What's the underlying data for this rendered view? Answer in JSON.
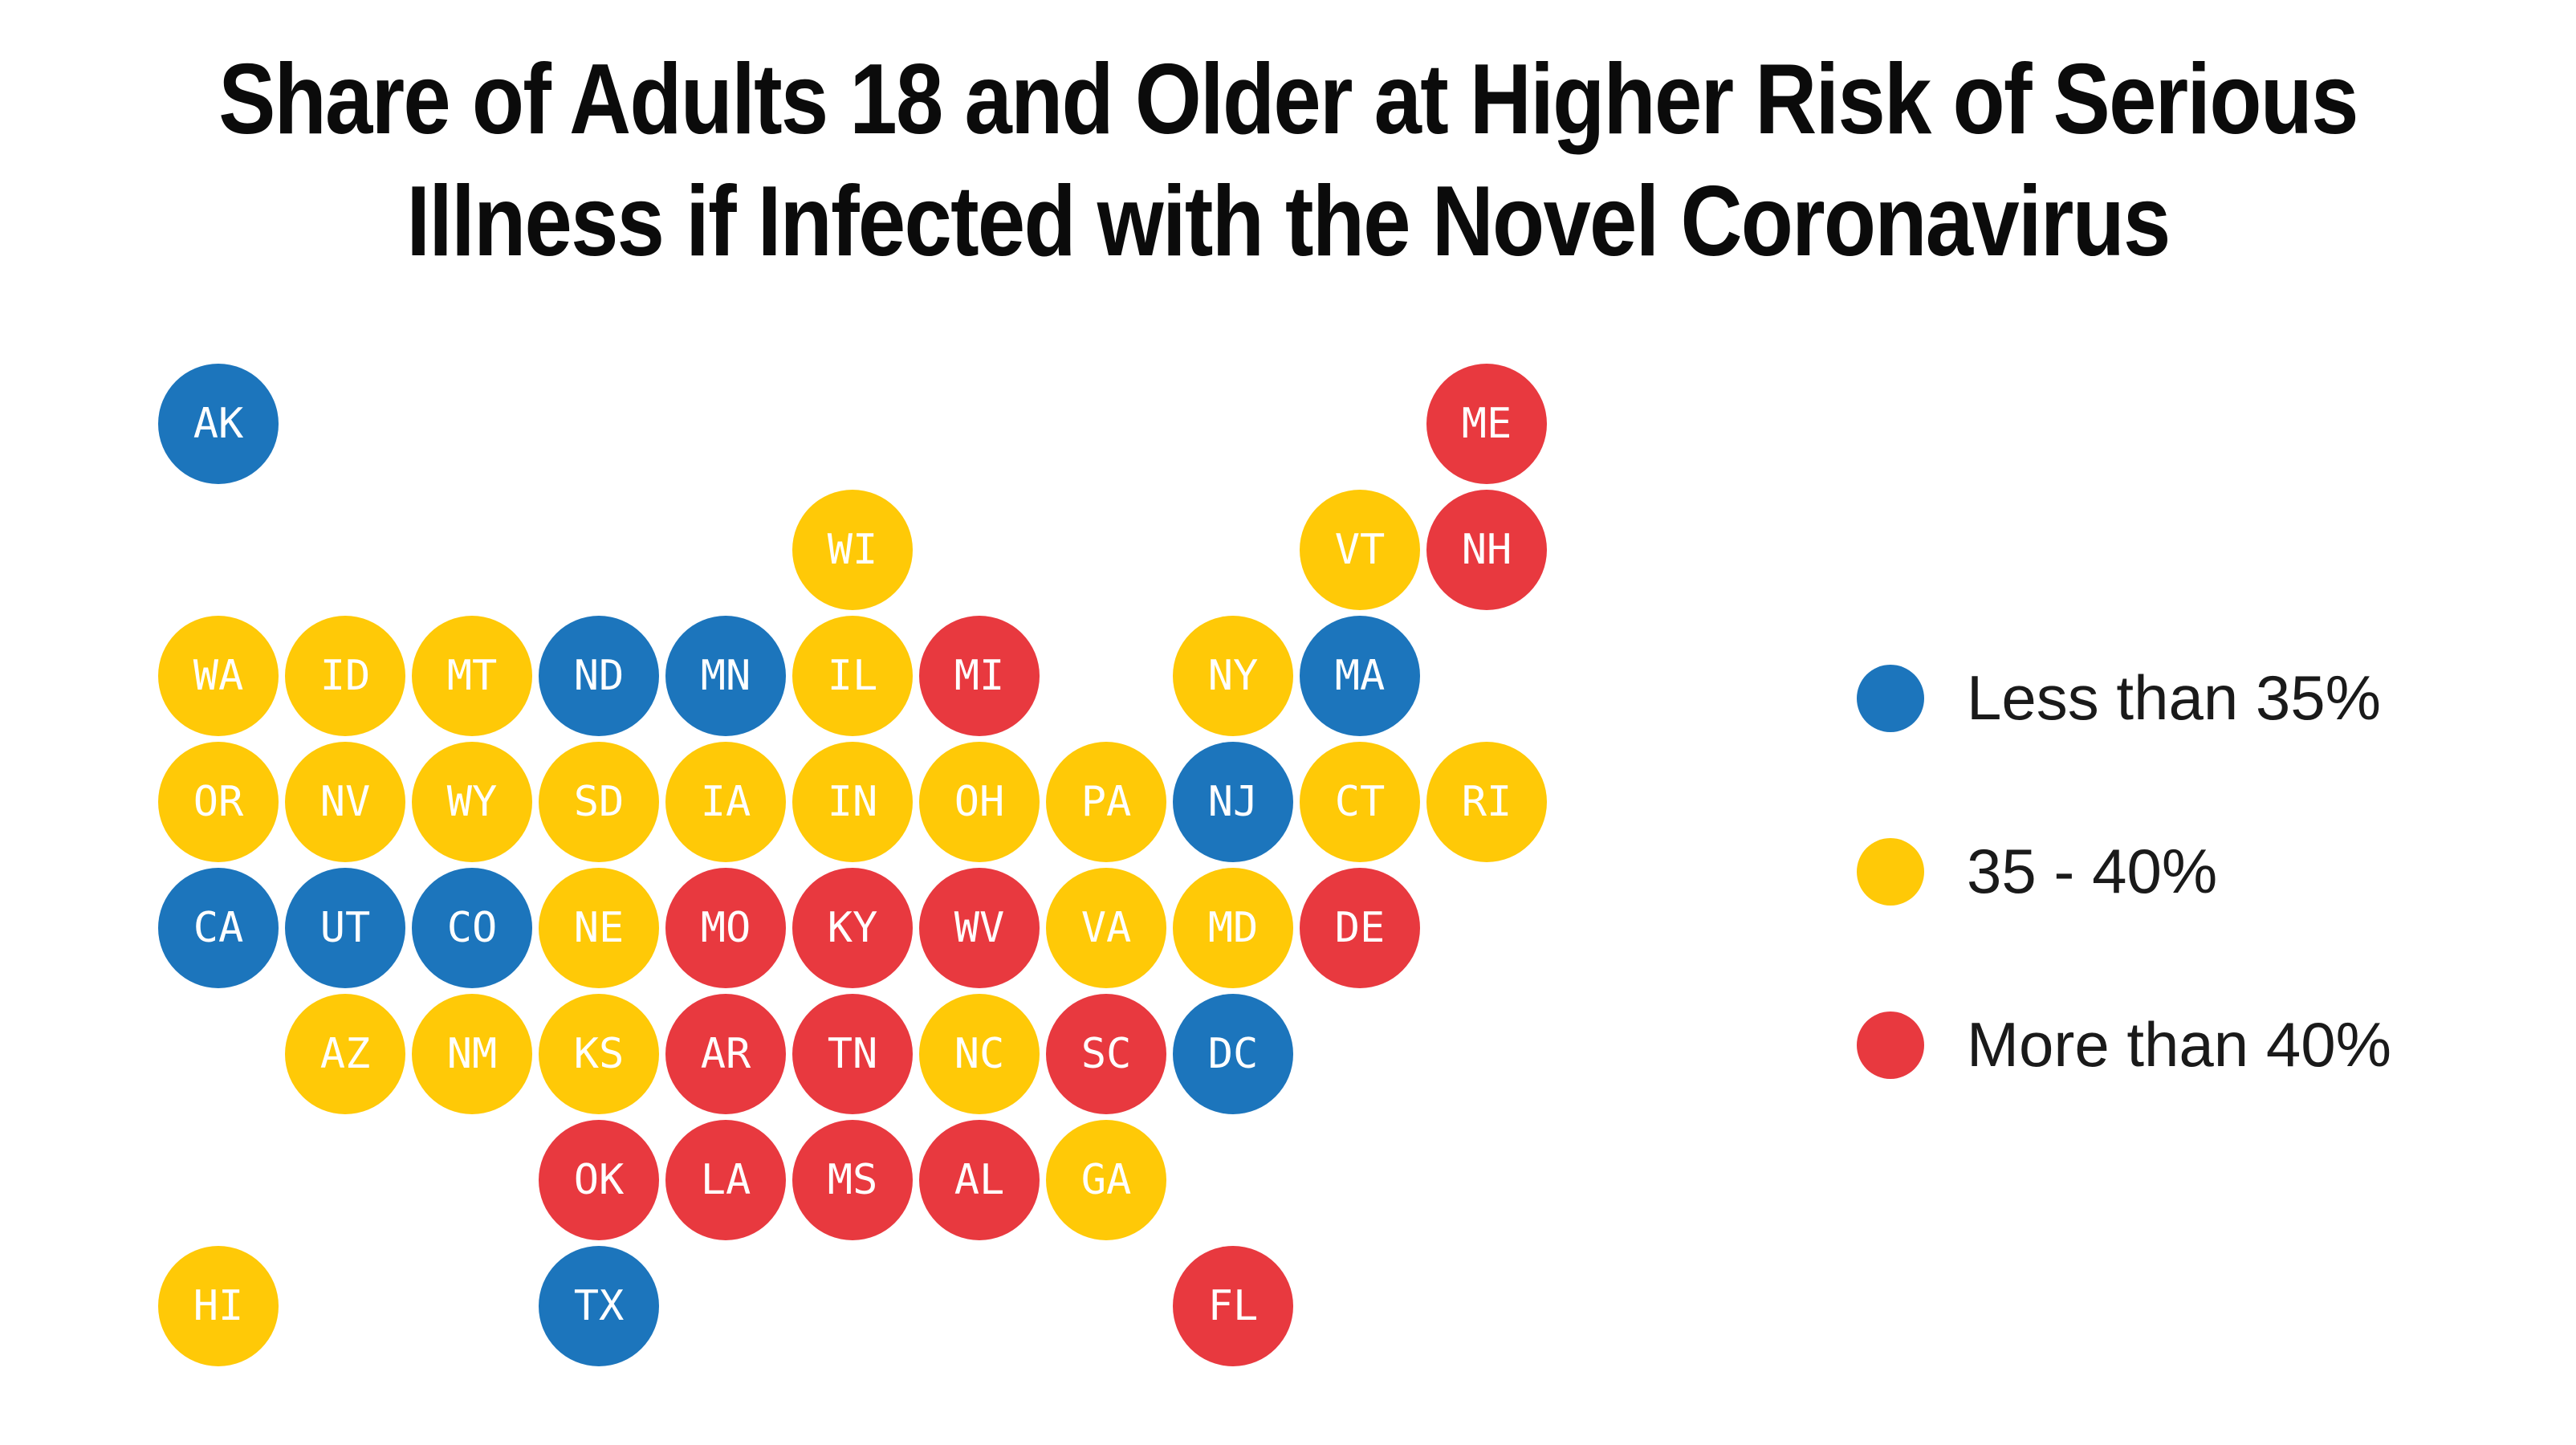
{
  "title": {
    "line1": "Share of Adults 18 and Older at Higher Risk of Serious",
    "line2": "Illness if Infected with the Novel Coronavirus"
  },
  "palette": {
    "blue": "#1C75BC",
    "yellow": "#FFC907",
    "red": "#E8393F"
  },
  "legend": [
    {
      "label": "Less than 35%",
      "color": "blue"
    },
    {
      "label": "35 - 40%",
      "color": "yellow"
    },
    {
      "label": "More than 40%",
      "color": "red"
    }
  ],
  "chart_data": {
    "type": "tile-grid-map",
    "title": "Share of Adults 18 and Older at Higher Risk of Serious Illness if Infected with the Novel Coronavirus",
    "categories": [
      "Less than 35%",
      "35 - 40%",
      "More than 40%"
    ],
    "category_colors": {
      "Less than 35%": "blue",
      "35 - 40%": "yellow",
      "More than 40%": "red"
    },
    "legend_position": "right",
    "states": [
      {
        "abbr": "AK",
        "row": 0,
        "col": 0,
        "color": "blue",
        "category": "Less than 35%"
      },
      {
        "abbr": "ME",
        "row": 0,
        "col": 10,
        "color": "red",
        "category": "More than 40%"
      },
      {
        "abbr": "WI",
        "row": 1,
        "col": 5,
        "color": "yellow",
        "category": "35 - 40%"
      },
      {
        "abbr": "VT",
        "row": 1,
        "col": 9,
        "color": "yellow",
        "category": "35 - 40%"
      },
      {
        "abbr": "NH",
        "row": 1,
        "col": 10,
        "color": "red",
        "category": "More than 40%"
      },
      {
        "abbr": "WA",
        "row": 2,
        "col": 0,
        "color": "yellow",
        "category": "35 - 40%"
      },
      {
        "abbr": "ID",
        "row": 2,
        "col": 1,
        "color": "yellow",
        "category": "35 - 40%"
      },
      {
        "abbr": "MT",
        "row": 2,
        "col": 2,
        "color": "yellow",
        "category": "35 - 40%"
      },
      {
        "abbr": "ND",
        "row": 2,
        "col": 3,
        "color": "blue",
        "category": "Less than 35%"
      },
      {
        "abbr": "MN",
        "row": 2,
        "col": 4,
        "color": "blue",
        "category": "Less than 35%"
      },
      {
        "abbr": "IL",
        "row": 2,
        "col": 5,
        "color": "yellow",
        "category": "35 - 40%"
      },
      {
        "abbr": "MI",
        "row": 2,
        "col": 6,
        "color": "red",
        "category": "More than 40%"
      },
      {
        "abbr": "NY",
        "row": 2,
        "col": 8,
        "color": "yellow",
        "category": "35 - 40%"
      },
      {
        "abbr": "MA",
        "row": 2,
        "col": 9,
        "color": "blue",
        "category": "Less than 35%"
      },
      {
        "abbr": "OR",
        "row": 3,
        "col": 0,
        "color": "yellow",
        "category": "35 - 40%"
      },
      {
        "abbr": "NV",
        "row": 3,
        "col": 1,
        "color": "yellow",
        "category": "35 - 40%"
      },
      {
        "abbr": "WY",
        "row": 3,
        "col": 2,
        "color": "yellow",
        "category": "35 - 40%"
      },
      {
        "abbr": "SD",
        "row": 3,
        "col": 3,
        "color": "yellow",
        "category": "35 - 40%"
      },
      {
        "abbr": "IA",
        "row": 3,
        "col": 4,
        "color": "yellow",
        "category": "35 - 40%"
      },
      {
        "abbr": "IN",
        "row": 3,
        "col": 5,
        "color": "yellow",
        "category": "35 - 40%"
      },
      {
        "abbr": "OH",
        "row": 3,
        "col": 6,
        "color": "yellow",
        "category": "35 - 40%"
      },
      {
        "abbr": "PA",
        "row": 3,
        "col": 7,
        "color": "yellow",
        "category": "35 - 40%"
      },
      {
        "abbr": "NJ",
        "row": 3,
        "col": 8,
        "color": "blue",
        "category": "Less than 35%"
      },
      {
        "abbr": "CT",
        "row": 3,
        "col": 9,
        "color": "yellow",
        "category": "35 - 40%"
      },
      {
        "abbr": "RI",
        "row": 3,
        "col": 10,
        "color": "yellow",
        "category": "35 - 40%"
      },
      {
        "abbr": "CA",
        "row": 4,
        "col": 0,
        "color": "blue",
        "category": "Less than 35%"
      },
      {
        "abbr": "UT",
        "row": 4,
        "col": 1,
        "color": "blue",
        "category": "Less than 35%"
      },
      {
        "abbr": "CO",
        "row": 4,
        "col": 2,
        "color": "blue",
        "category": "Less than 35%"
      },
      {
        "abbr": "NE",
        "row": 4,
        "col": 3,
        "color": "yellow",
        "category": "35 - 40%"
      },
      {
        "abbr": "MO",
        "row": 4,
        "col": 4,
        "color": "red",
        "category": "More than 40%"
      },
      {
        "abbr": "KY",
        "row": 4,
        "col": 5,
        "color": "red",
        "category": "More than 40%"
      },
      {
        "abbr": "WV",
        "row": 4,
        "col": 6,
        "color": "red",
        "category": "More than 40%"
      },
      {
        "abbr": "VA",
        "row": 4,
        "col": 7,
        "color": "yellow",
        "category": "35 - 40%"
      },
      {
        "abbr": "MD",
        "row": 4,
        "col": 8,
        "color": "yellow",
        "category": "35 - 40%"
      },
      {
        "abbr": "DE",
        "row": 4,
        "col": 9,
        "color": "red",
        "category": "More than 40%"
      },
      {
        "abbr": "AZ",
        "row": 5,
        "col": 1,
        "color": "yellow",
        "category": "35 - 40%"
      },
      {
        "abbr": "NM",
        "row": 5,
        "col": 2,
        "color": "yellow",
        "category": "35 - 40%"
      },
      {
        "abbr": "KS",
        "row": 5,
        "col": 3,
        "color": "yellow",
        "category": "35 - 40%"
      },
      {
        "abbr": "AR",
        "row": 5,
        "col": 4,
        "color": "red",
        "category": "More than 40%"
      },
      {
        "abbr": "TN",
        "row": 5,
        "col": 5,
        "color": "red",
        "category": "More than 40%"
      },
      {
        "abbr": "NC",
        "row": 5,
        "col": 6,
        "color": "yellow",
        "category": "35 - 40%"
      },
      {
        "abbr": "SC",
        "row": 5,
        "col": 7,
        "color": "red",
        "category": "More than 40%"
      },
      {
        "abbr": "DC",
        "row": 5,
        "col": 8,
        "color": "blue",
        "category": "Less than 35%"
      },
      {
        "abbr": "OK",
        "row": 6,
        "col": 3,
        "color": "red",
        "category": "More than 40%"
      },
      {
        "abbr": "LA",
        "row": 6,
        "col": 4,
        "color": "red",
        "category": "More than 40%"
      },
      {
        "abbr": "MS",
        "row": 6,
        "col": 5,
        "color": "red",
        "category": "More than 40%"
      },
      {
        "abbr": "AL",
        "row": 6,
        "col": 6,
        "color": "red",
        "category": "More than 40%"
      },
      {
        "abbr": "GA",
        "row": 6,
        "col": 7,
        "color": "yellow",
        "category": "35 - 40%"
      },
      {
        "abbr": "HI",
        "row": 7,
        "col": 0,
        "color": "yellow",
        "category": "35 - 40%"
      },
      {
        "abbr": "TX",
        "row": 7,
        "col": 3,
        "color": "blue",
        "category": "Less than 35%"
      },
      {
        "abbr": "FL",
        "row": 7,
        "col": 8,
        "color": "red",
        "category": "More than 40%"
      }
    ]
  }
}
